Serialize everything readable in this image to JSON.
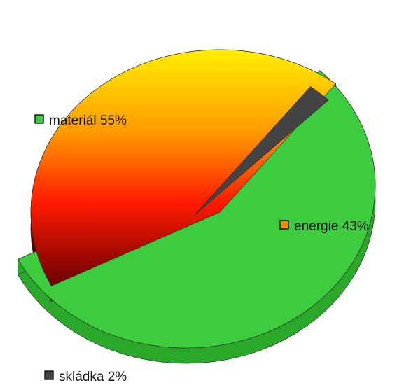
{
  "chart_data": {
    "type": "pie",
    "style": "3d-exploded",
    "legend": "inline-labels",
    "slices": [
      {
        "label": "materiál 55%",
        "value": 55,
        "color": "#3dcc3d",
        "marker_color": "#3dcc3d"
      },
      {
        "label": "energie 43%",
        "value": 43,
        "color": "#ff8a00",
        "marker_color": "#f28b00"
      },
      {
        "label": "skládka 2%",
        "value": 2,
        "color": "#444444",
        "marker_color": "#404040"
      }
    ]
  }
}
